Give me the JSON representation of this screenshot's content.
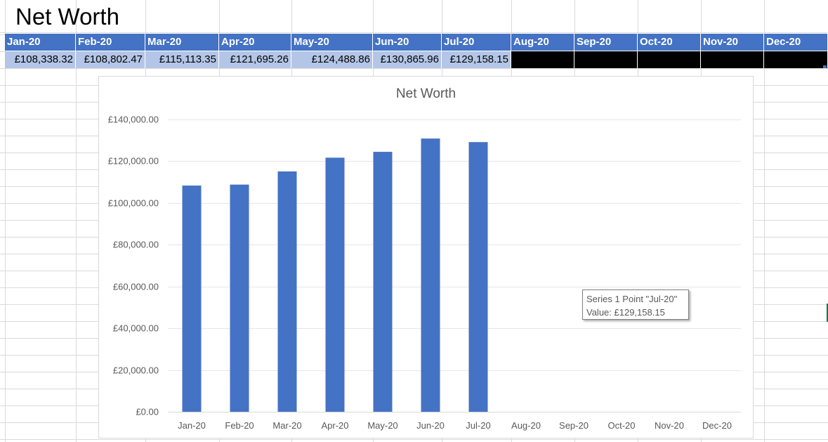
{
  "sheet": {
    "title": "Net Worth",
    "headers": [
      "Jan-20",
      "Feb-20",
      "Mar-20",
      "Apr-20",
      "May-20",
      "Jun-20",
      "Jul-20",
      "Aug-20",
      "Sep-20",
      "Oct-20",
      "Nov-20",
      "Dec-20"
    ],
    "values": [
      "£108,338.32",
      "£108,802.47",
      "£115,113.35",
      "£121,695.26",
      "£124,488.86",
      "£130,865.96",
      "£129,158.15",
      "",
      "",
      "",
      "",
      ""
    ],
    "header_color": "#4472c4",
    "value_fill_color": "#b4c6e7",
    "empty_fill_color": "#000000"
  },
  "chart_data": {
    "type": "bar",
    "title": "Net Worth",
    "categories": [
      "Jan-20",
      "Feb-20",
      "Mar-20",
      "Apr-20",
      "May-20",
      "Jun-20",
      "Jul-20",
      "Aug-20",
      "Sep-20",
      "Oct-20",
      "Nov-20",
      "Dec-20"
    ],
    "series": [
      {
        "values": [
          108338.32,
          108802.47,
          115113.35,
          121695.26,
          124488.86,
          130865.96,
          129158.15,
          null,
          null,
          null,
          null,
          null
        ],
        "color": "#4472c4"
      }
    ],
    "y_ticks": [
      "£0.00",
      "£20,000.00",
      "£40,000.00",
      "£60,000.00",
      "£80,000.00",
      "£100,000.00",
      "£120,000.00",
      "£140,000.00"
    ],
    "ylim": [
      0,
      140000
    ],
    "grid": true,
    "legend": "none",
    "xlabel": "",
    "ylabel": ""
  },
  "tooltip": {
    "line1": "Series 1 Point \"Jul-20\"",
    "line2": "Value: £129,158.15"
  }
}
